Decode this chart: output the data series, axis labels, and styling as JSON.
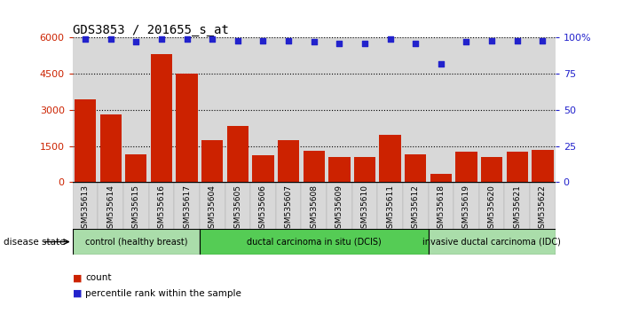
{
  "title": "GDS3853 / 201655_s_at",
  "samples": [
    "GSM535613",
    "GSM535614",
    "GSM535615",
    "GSM535616",
    "GSM535617",
    "GSM535604",
    "GSM535605",
    "GSM535606",
    "GSM535607",
    "GSM535608",
    "GSM535609",
    "GSM535610",
    "GSM535611",
    "GSM535612",
    "GSM535618",
    "GSM535619",
    "GSM535620",
    "GSM535621",
    "GSM535622"
  ],
  "counts": [
    3450,
    2800,
    1150,
    5300,
    4500,
    1750,
    2350,
    1100,
    1750,
    1300,
    1050,
    1050,
    1950,
    1150,
    330,
    1250,
    1050,
    1280,
    1350
  ],
  "percentiles": [
    99,
    99,
    97,
    99,
    99,
    99,
    98,
    98,
    98,
    97,
    96,
    96,
    99,
    96,
    82,
    97,
    98,
    98,
    98
  ],
  "bar_color": "#cc2200",
  "dot_color": "#2222cc",
  "ylim_left": [
    0,
    6000
  ],
  "ylim_right": [
    0,
    100
  ],
  "yticks_left": [
    0,
    1500,
    3000,
    4500,
    6000
  ],
  "yticks_right": [
    0,
    25,
    50,
    75,
    100
  ],
  "groups": [
    {
      "label": "control (healthy breast)",
      "start": 0,
      "end": 5,
      "color": "#aaddaa"
    },
    {
      "label": "ductal carcinoma in situ (DCIS)",
      "start": 5,
      "end": 14,
      "color": "#55cc55"
    },
    {
      "label": "invasive ductal carcinoma (IDC)",
      "start": 14,
      "end": 19,
      "color": "#aaddaa"
    }
  ],
  "disease_state_label": "disease state",
  "legend_count_label": "count",
  "legend_pct_label": "percentile rank within the sample",
  "bg_color": "#d8d8d8",
  "title_fontsize": 10,
  "axis_tick_color_left": "#cc2200",
  "axis_tick_color_right": "#2222cc",
  "n_samples": 19
}
